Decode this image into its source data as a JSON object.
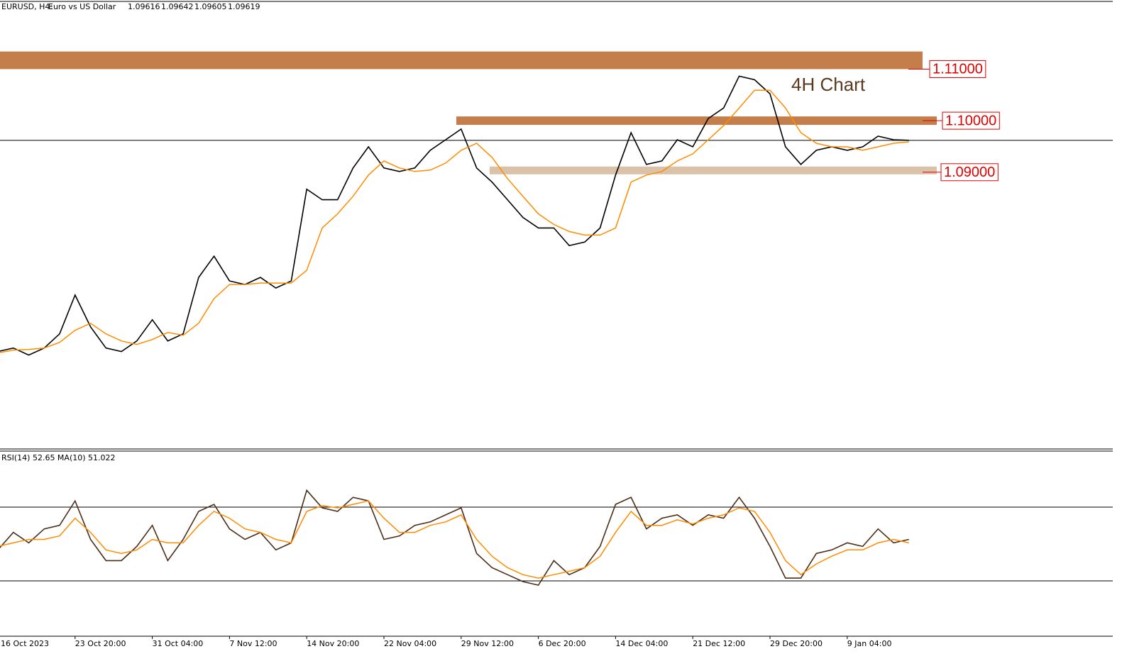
{
  "chart_data": [
    {
      "type": "line",
      "symbol": "EURUSD, H4:",
      "description": "Euro vs US Dollar",
      "ohlc": [
        1.09616,
        1.09642,
        1.09605,
        1.09619
      ],
      "annotation": "4H Chart",
      "categories": [
        "16 Oct 2023",
        null,
        null,
        null,
        null,
        "23 Oct 20:00",
        null,
        null,
        null,
        null,
        "31 Oct 04:00",
        null,
        null,
        null,
        null,
        "7 Nov 12:00",
        null,
        null,
        null,
        null,
        "14 Nov 20:00",
        null,
        null,
        null,
        null,
        "22 Nov 04:00",
        null,
        null,
        null,
        null,
        "29 Nov 12:00",
        null,
        null,
        null,
        null,
        "6 Dec 20:00",
        null,
        null,
        null,
        null,
        "14 Dec 04:00",
        null,
        null,
        null,
        null,
        "21 Dec 12:00",
        null,
        null,
        null,
        null,
        "29 Dec 20:00",
        null,
        null,
        null,
        null,
        "9 Jan 04:00",
        null,
        null,
        null,
        null
      ],
      "series": [
        {
          "color": "#000000",
          "values": [
            1.05521,
            1.05589,
            1.05452,
            1.05589,
            1.05863,
            1.06616,
            1.06,
            1.05589,
            1.05521,
            1.05726,
            1.06137,
            1.05726,
            1.05863,
            1.06959,
            1.0737,
            1.0689,
            1.06822,
            1.06959,
            1.06753,
            1.0689,
            1.08671,
            1.08466,
            1.08466,
            1.09082,
            1.09493,
            1.09082,
            1.09014,
            1.09082,
            1.09425,
            1.0963,
            1.09836,
            1.09082,
            1.08808,
            1.08466,
            1.08123,
            1.07918,
            1.07918,
            1.07575,
            1.07644,
            1.07918,
            1.08945,
            1.09767,
            1.09151,
            1.09219,
            1.0963,
            1.09493,
            1.10041,
            1.10247,
            1.10863,
            1.10795,
            1.10521,
            1.09493,
            1.09151,
            1.09425,
            1.09493,
            1.09425,
            1.09493,
            1.09699,
            1.0963,
            1.09619
          ]
        },
        {
          "color": "#ff8c00",
          "values": [
            1.05493,
            1.05548,
            1.05562,
            1.05589,
            1.05699,
            1.05932,
            1.06068,
            1.05863,
            1.05726,
            1.05658,
            1.05753,
            1.0589,
            1.05836,
            1.06068,
            1.06548,
            1.06822,
            1.06822,
            1.06849,
            1.06849,
            1.06849,
            1.07096,
            1.07918,
            1.08192,
            1.08534,
            1.08945,
            1.09219,
            1.09082,
            1.09014,
            1.09041,
            1.09178,
            1.09425,
            1.09562,
            1.09288,
            1.08877,
            1.08534,
            1.08192,
            1.07986,
            1.07849,
            1.07781,
            1.07781,
            1.07918,
            1.08808,
            1.08945,
            1.09014,
            1.09219,
            1.09356,
            1.0963,
            1.09904,
            1.10247,
            1.10589,
            1.10589,
            1.10247,
            1.09767,
            1.09562,
            1.09493,
            1.09493,
            1.09425,
            1.09493,
            1.09562,
            1.09589
          ]
        }
      ],
      "zones": [
        {
          "color": "#c47e4b",
          "range": [
            1.11,
            1.11342
          ],
          "level": {
            "value": 1.11,
            "label": "1.11000"
          }
        },
        {
          "color": "#c47e4b",
          "range": [
            1.09918,
            1.10082
          ],
          "level": {
            "value": 1.1,
            "label": "1.10000"
          }
        },
        {
          "color": "#d9c2a8",
          "range": [
            1.08959,
            1.0911
          ],
          "level": {
            "value": 1.09,
            "label": "1.09000"
          }
        }
      ],
      "ylim": [
        1.0363,
        1.123
      ]
    },
    {
      "type": "line",
      "title": "RSI(14) 52.65 MA(10) 51.022",
      "series": [
        {
          "color": "#4a2d18",
          "values": [
            46.8,
            56.3,
            50.6,
            58.2,
            60.1,
            73.4,
            52.5,
            41.0,
            41.0,
            48.7,
            60.1,
            41.0,
            52.5,
            67.7,
            71.5,
            58.2,
            52.5,
            56.3,
            46.8,
            50.6,
            79.1,
            69.6,
            67.7,
            75.3,
            73.4,
            52.5,
            54.4,
            60.1,
            62.0,
            65.8,
            69.6,
            44.9,
            37.2,
            33.4,
            29.6,
            27.7,
            41.0,
            33.4,
            37.2,
            48.7,
            71.5,
            75.3,
            58.2,
            64.0,
            65.8,
            60.1,
            65.8,
            64.0,
            75.3,
            64.0,
            48.7,
            31.5,
            31.5,
            44.9,
            46.8,
            50.6,
            48.7,
            58.2,
            50.6,
            52.5
          ]
        },
        {
          "color": "#ff8c00",
          "values": [
            48.7,
            50.6,
            52.5,
            52.5,
            54.4,
            64.0,
            56.3,
            46.8,
            44.9,
            46.8,
            52.5,
            50.6,
            50.6,
            60.1,
            67.7,
            64.0,
            58.2,
            56.3,
            52.5,
            50.6,
            67.7,
            70.8,
            69.6,
            71.5,
            73.4,
            64.0,
            56.3,
            56.3,
            60.1,
            62.0,
            65.8,
            52.5,
            43.4,
            37.2,
            33.4,
            31.5,
            33.4,
            35.2,
            37.2,
            43.4,
            56.3,
            67.7,
            60.1,
            60.1,
            63.1,
            60.9,
            64.0,
            65.8,
            69.6,
            67.7,
            56.3,
            41.0,
            33.4,
            39.2,
            43.4,
            46.8,
            46.8,
            50.6,
            52.5,
            50.6
          ]
        }
      ],
      "levels": [
        70,
        30
      ],
      "ylim": [
        0,
        100
      ]
    }
  ]
}
